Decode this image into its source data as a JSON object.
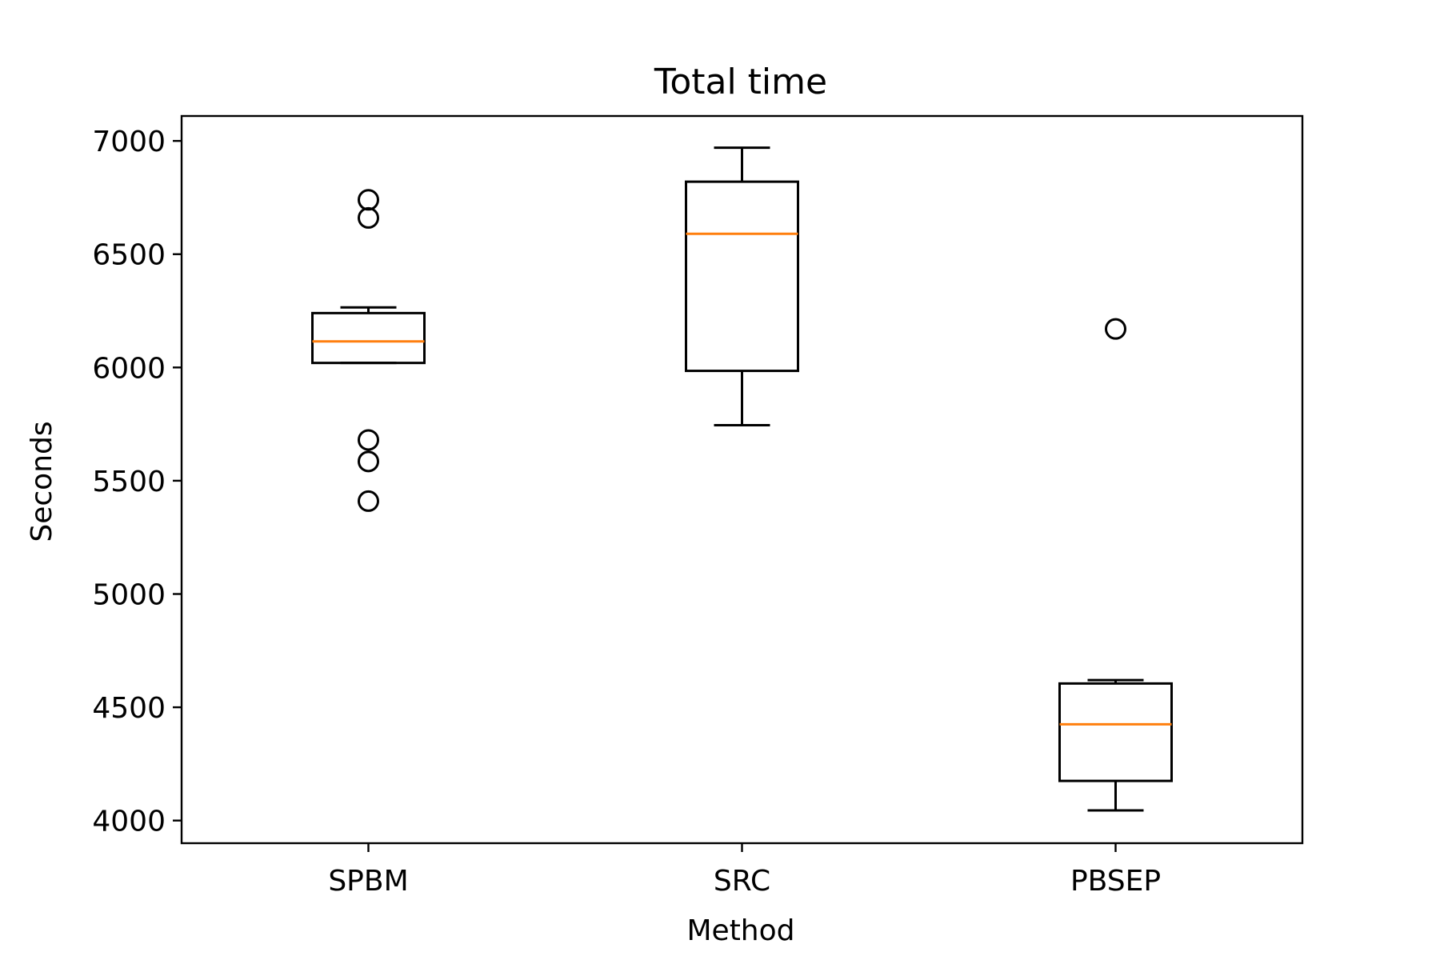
{
  "chart_data": {
    "type": "boxplot",
    "title": "Total time",
    "xlabel": "Method",
    "ylabel": "Seconds",
    "ylim": [
      3900,
      7110
    ],
    "yticks": [
      4000,
      4500,
      5000,
      5500,
      6000,
      6500,
      7000
    ],
    "grid": false,
    "categories": [
      "SPBM",
      "SRC",
      "PBSEP"
    ],
    "boxes": [
      {
        "whisker_low": 6020,
        "q1": 6020,
        "median": 6115,
        "q3": 6240,
        "whisker_high": 6265,
        "outliers": [
          6740,
          6660,
          5680,
          5585,
          5410
        ]
      },
      {
        "whisker_low": 5745,
        "q1": 5985,
        "median": 6590,
        "q3": 6820,
        "whisker_high": 6970,
        "outliers": []
      },
      {
        "whisker_low": 4045,
        "q1": 4175,
        "median": 4425,
        "q3": 4605,
        "whisker_high": 4620,
        "outliers": [
          6170
        ]
      }
    ],
    "colors": {
      "box": "#000000",
      "median": "#ff7f0e",
      "background": "#ffffff"
    }
  }
}
